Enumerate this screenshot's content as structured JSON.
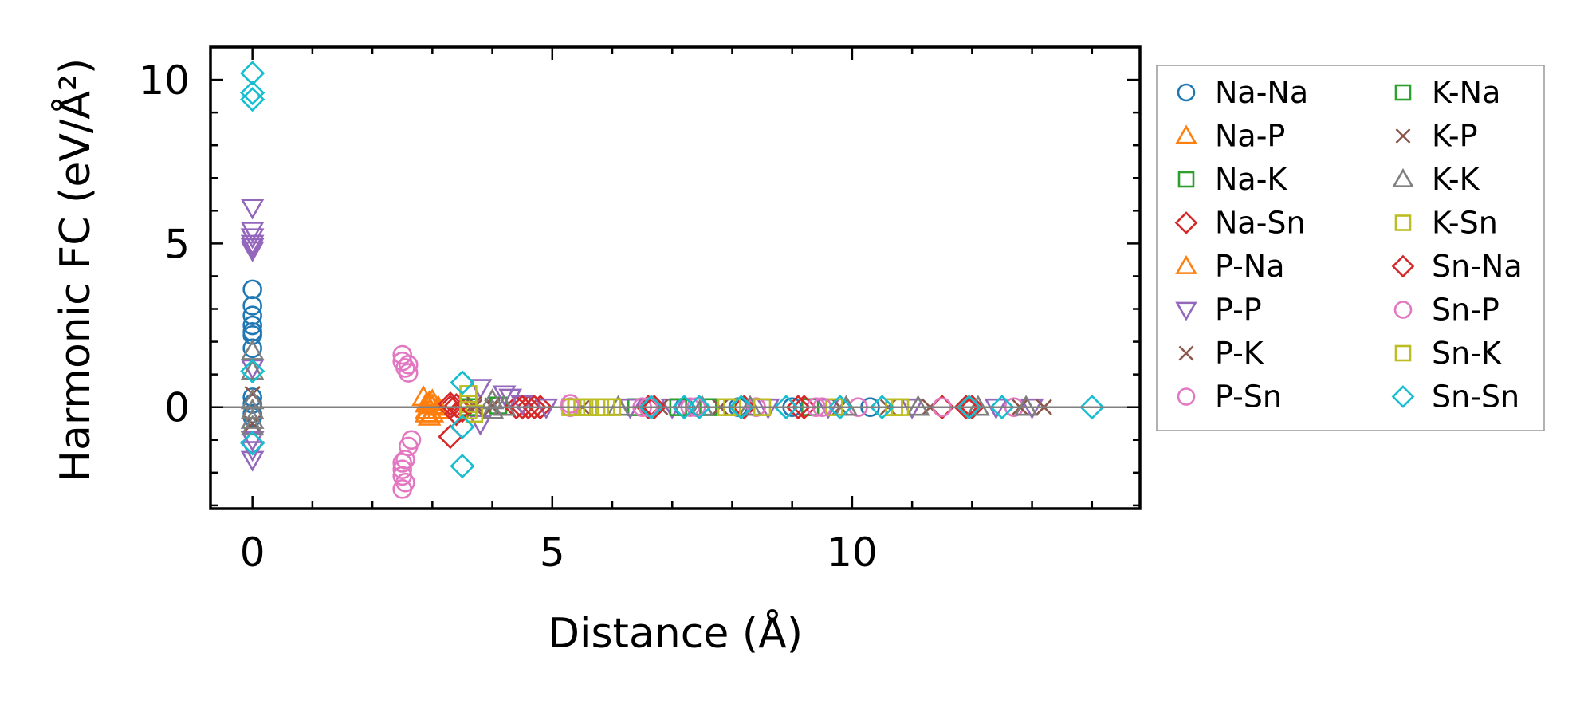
{
  "chart_data": {
    "type": "scatter",
    "xlabel": "Distance (Å)",
    "ylabel": "Harmonic FC (eV/Å²)",
    "xlim": [
      -0.7,
      14.8
    ],
    "ylim": [
      -3.1,
      11.0
    ],
    "xticks": [
      0,
      5,
      10
    ],
    "yticks": [
      0,
      5,
      10
    ],
    "grid": false,
    "zero_line": true,
    "legend_position": "outside-right",
    "legend_columns": 2,
    "series": [
      {
        "name": "Na-Na",
        "marker": "circle",
        "color": "#1f77b4",
        "points": [
          [
            0,
            3.6
          ],
          [
            0,
            3.1
          ],
          [
            0,
            2.8
          ],
          [
            0,
            2.5
          ],
          [
            0,
            2.3
          ],
          [
            0,
            2.2
          ],
          [
            0,
            1.8
          ],
          [
            0,
            0.3
          ],
          [
            0,
            0.1
          ],
          [
            0,
            -0.2
          ],
          [
            0,
            -0.3
          ],
          [
            6.6,
            0
          ],
          [
            7.2,
            0
          ],
          [
            8.1,
            0
          ],
          [
            9.0,
            0
          ],
          [
            10.3,
            0
          ]
        ]
      },
      {
        "name": "Na-P",
        "marker": "triangle-up",
        "color": "#ff7f0e",
        "points": [
          [
            2.85,
            0.3
          ],
          [
            2.9,
            0.1
          ],
          [
            2.9,
            -0.1
          ],
          [
            2.95,
            -0.3
          ],
          [
            3.0,
            0.05
          ],
          [
            3.0,
            -0.2
          ],
          [
            2.95,
            0.15
          ]
        ]
      },
      {
        "name": "Na-K",
        "marker": "square",
        "color": "#2ca02c",
        "points": [
          [
            3.6,
            0.1
          ],
          [
            4.1,
            0.05
          ],
          [
            5.4,
            0
          ],
          [
            6.4,
            0
          ],
          [
            7.6,
            0
          ],
          [
            9.3,
            0
          ]
        ]
      },
      {
        "name": "Na-Sn",
        "marker": "diamond",
        "color": "#d62728",
        "points": [
          [
            3.3,
            0
          ],
          [
            3.3,
            -0.9
          ],
          [
            3.4,
            0.05
          ],
          [
            3.5,
            -0.1
          ],
          [
            4.4,
            0
          ],
          [
            4.6,
            0
          ],
          [
            4.8,
            0
          ],
          [
            6.6,
            0
          ],
          [
            8.2,
            0
          ],
          [
            9.2,
            0
          ],
          [
            11.5,
            0
          ],
          [
            12.0,
            0
          ]
        ]
      },
      {
        "name": "P-Na",
        "marker": "triangle-up",
        "color": "#ff7f0e",
        "points": [
          [
            2.9,
            -0.2
          ],
          [
            3.0,
            0.2
          ],
          [
            3.1,
            0
          ],
          [
            3.1,
            -0.1
          ]
        ]
      },
      {
        "name": "P-P",
        "marker": "triangle-down",
        "color": "#9467bd",
        "points": [
          [
            0,
            6.1
          ],
          [
            0,
            5.4
          ],
          [
            0,
            5.2
          ],
          [
            0,
            5.0
          ],
          [
            0,
            4.9
          ],
          [
            0,
            4.8
          ],
          [
            0,
            1.2
          ],
          [
            0,
            -1.0
          ],
          [
            0,
            -1.3
          ],
          [
            0,
            -1.6
          ],
          [
            3.8,
            0.6
          ],
          [
            3.8,
            -0.5
          ],
          [
            4.2,
            0.4
          ],
          [
            4.3,
            0.3
          ],
          [
            4.5,
            0.1
          ],
          [
            4.9,
            0
          ],
          [
            6.3,
            0
          ],
          [
            7.0,
            0
          ],
          [
            8.6,
            0
          ],
          [
            9.6,
            0
          ],
          [
            11.0,
            0
          ],
          [
            12.4,
            0
          ],
          [
            13.0,
            0
          ]
        ]
      },
      {
        "name": "P-K",
        "marker": "x",
        "color": "#8c564b",
        "points": [
          [
            0,
            0.4
          ],
          [
            0,
            -0.5
          ],
          [
            3.7,
            0.1
          ],
          [
            4.0,
            0
          ],
          [
            5.5,
            0
          ],
          [
            7.8,
            0
          ],
          [
            9.8,
            0
          ],
          [
            11.3,
            0
          ],
          [
            13.2,
            0
          ]
        ]
      },
      {
        "name": "P-Sn",
        "marker": "circle",
        "color": "#e377c2",
        "points": [
          [
            2.5,
            1.6
          ],
          [
            2.5,
            1.4
          ],
          [
            2.55,
            1.2
          ],
          [
            2.6,
            1.05
          ],
          [
            2.55,
            -1.6
          ],
          [
            2.5,
            -1.9
          ],
          [
            2.5,
            -2.1
          ],
          [
            2.55,
            -2.3
          ],
          [
            2.5,
            -2.5
          ],
          [
            2.6,
            -1.2
          ],
          [
            2.65,
            -1.0
          ],
          [
            5.3,
            0
          ],
          [
            6.5,
            0
          ],
          [
            7.3,
            0
          ],
          [
            8.4,
            0
          ],
          [
            9.4,
            0
          ],
          [
            10.1,
            0
          ],
          [
            11.5,
            0
          ],
          [
            12.7,
            0
          ]
        ]
      },
      {
        "name": "K-Na",
        "marker": "square",
        "color": "#2ca02c",
        "points": [
          [
            3.6,
            0
          ],
          [
            5.6,
            0
          ],
          [
            7.1,
            0
          ]
        ]
      },
      {
        "name": "K-P",
        "marker": "x",
        "color": "#8c564b",
        "points": [
          [
            3.7,
            0
          ],
          [
            4.0,
            0.05
          ],
          [
            6.8,
            0
          ],
          [
            10.6,
            0
          ],
          [
            12.8,
            0
          ]
        ]
      },
      {
        "name": "K-K",
        "marker": "triangle-up",
        "color": "#7f7f7f",
        "points": [
          [
            0,
            1.7
          ],
          [
            0,
            1.1
          ],
          [
            0,
            0.2
          ],
          [
            0,
            -0.1
          ],
          [
            0,
            -0.4
          ],
          [
            0,
            -0.6
          ],
          [
            4.0,
            0.2
          ],
          [
            4.0,
            -0.1
          ],
          [
            4.2,
            0
          ],
          [
            6.1,
            0
          ],
          [
            7.5,
            0
          ],
          [
            8.3,
            0
          ],
          [
            9.9,
            0
          ],
          [
            11.1,
            0
          ],
          [
            12.1,
            0
          ],
          [
            12.9,
            0
          ]
        ]
      },
      {
        "name": "K-Sn",
        "marker": "square",
        "color": "#bcbd22",
        "points": [
          [
            3.6,
            0.4
          ],
          [
            3.6,
            0.1
          ],
          [
            3.7,
            -0.2
          ],
          [
            5.3,
            0
          ],
          [
            5.5,
            0
          ],
          [
            5.6,
            0
          ],
          [
            5.8,
            0
          ],
          [
            6.0,
            0
          ],
          [
            7.9,
            0
          ],
          [
            8.5,
            0
          ],
          [
            9.7,
            0
          ],
          [
            10.7,
            0
          ],
          [
            10.8,
            0
          ]
        ]
      },
      {
        "name": "Sn-Na",
        "marker": "diamond",
        "color": "#d62728",
        "points": [
          [
            3.3,
            0.1
          ],
          [
            3.4,
            -0.2
          ],
          [
            4.5,
            0
          ],
          [
            4.7,
            0
          ],
          [
            6.7,
            0
          ],
          [
            9.1,
            0
          ],
          [
            11.9,
            0
          ]
        ]
      },
      {
        "name": "Sn-P",
        "marker": "circle",
        "color": "#e377c2",
        "points": [
          [
            2.6,
            1.3
          ],
          [
            2.5,
            -1.7
          ],
          [
            5.3,
            0.1
          ],
          [
            6.6,
            0
          ],
          [
            7.4,
            0
          ],
          [
            9.5,
            0
          ]
        ]
      },
      {
        "name": "Sn-K",
        "marker": "square",
        "color": "#bcbd22",
        "points": [
          [
            3.6,
            -0.1
          ],
          [
            5.4,
            0
          ],
          [
            5.9,
            0
          ],
          [
            8.0,
            0
          ],
          [
            10.7,
            0
          ]
        ]
      },
      {
        "name": "Sn-Sn",
        "marker": "diamond",
        "color": "#17becf",
        "points": [
          [
            0,
            10.2
          ],
          [
            0,
            9.6
          ],
          [
            0,
            9.4
          ],
          [
            0,
            1.1
          ],
          [
            0,
            -1.1
          ],
          [
            3.5,
            0.75
          ],
          [
            3.5,
            -0.6
          ],
          [
            3.5,
            -1.8
          ],
          [
            6.65,
            0
          ],
          [
            7.2,
            0
          ],
          [
            7.45,
            0
          ],
          [
            8.15,
            0
          ],
          [
            8.9,
            0
          ],
          [
            9.8,
            0
          ],
          [
            10.5,
            0
          ],
          [
            11.95,
            0
          ],
          [
            12.5,
            0
          ],
          [
            14.0,
            0
          ]
        ]
      }
    ]
  }
}
